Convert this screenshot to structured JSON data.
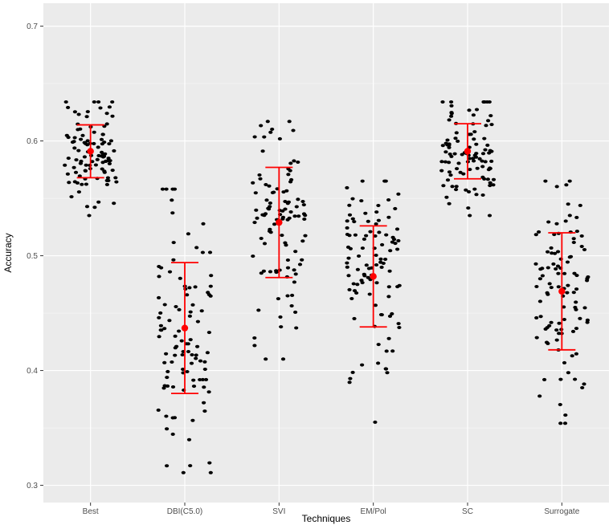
{
  "chart_data": {
    "type": "scatter",
    "subtype": "jitter-strip with mean and standard-deviation error bars",
    "title": "",
    "xlabel": "Techniques",
    "ylabel": "Accuracy",
    "ylim": [
      0.285,
      0.72
    ],
    "yticks": [
      0.3,
      0.4,
      0.5,
      0.6,
      0.7
    ],
    "ytick_labels": [
      "0.3",
      "0.4",
      "0.5",
      "0.6",
      "0.7"
    ],
    "grid": true,
    "legend": "none",
    "panel_color": "#ebebeb",
    "point_color": "#000000",
    "summary_color": "#ff0000",
    "categories": [
      "Best",
      "DBI(C5.0)",
      "SVI",
      "EM/Pol",
      "SC",
      "Surrogate"
    ],
    "series": [
      {
        "category": "Best",
        "mean": 0.591,
        "lower": 0.568,
        "upper": 0.614,
        "min": 0.535,
        "max": 0.634
      },
      {
        "category": "DBI(C5.0)",
        "mean": 0.437,
        "lower": 0.38,
        "upper": 0.494,
        "min": 0.311,
        "max": 0.558
      },
      {
        "category": "SVI",
        "mean": 0.529,
        "lower": 0.481,
        "upper": 0.577,
        "min": 0.41,
        "max": 0.617
      },
      {
        "category": "EM/Pol",
        "mean": 0.482,
        "lower": 0.438,
        "upper": 0.526,
        "min": 0.355,
        "max": 0.565
      },
      {
        "category": "SC",
        "mean": 0.591,
        "lower": 0.567,
        "upper": 0.615,
        "min": 0.535,
        "max": 0.634
      },
      {
        "category": "Surrogate",
        "mean": 0.469,
        "lower": 0.418,
        "upper": 0.52,
        "min": 0.354,
        "max": 0.565
      }
    ]
  }
}
